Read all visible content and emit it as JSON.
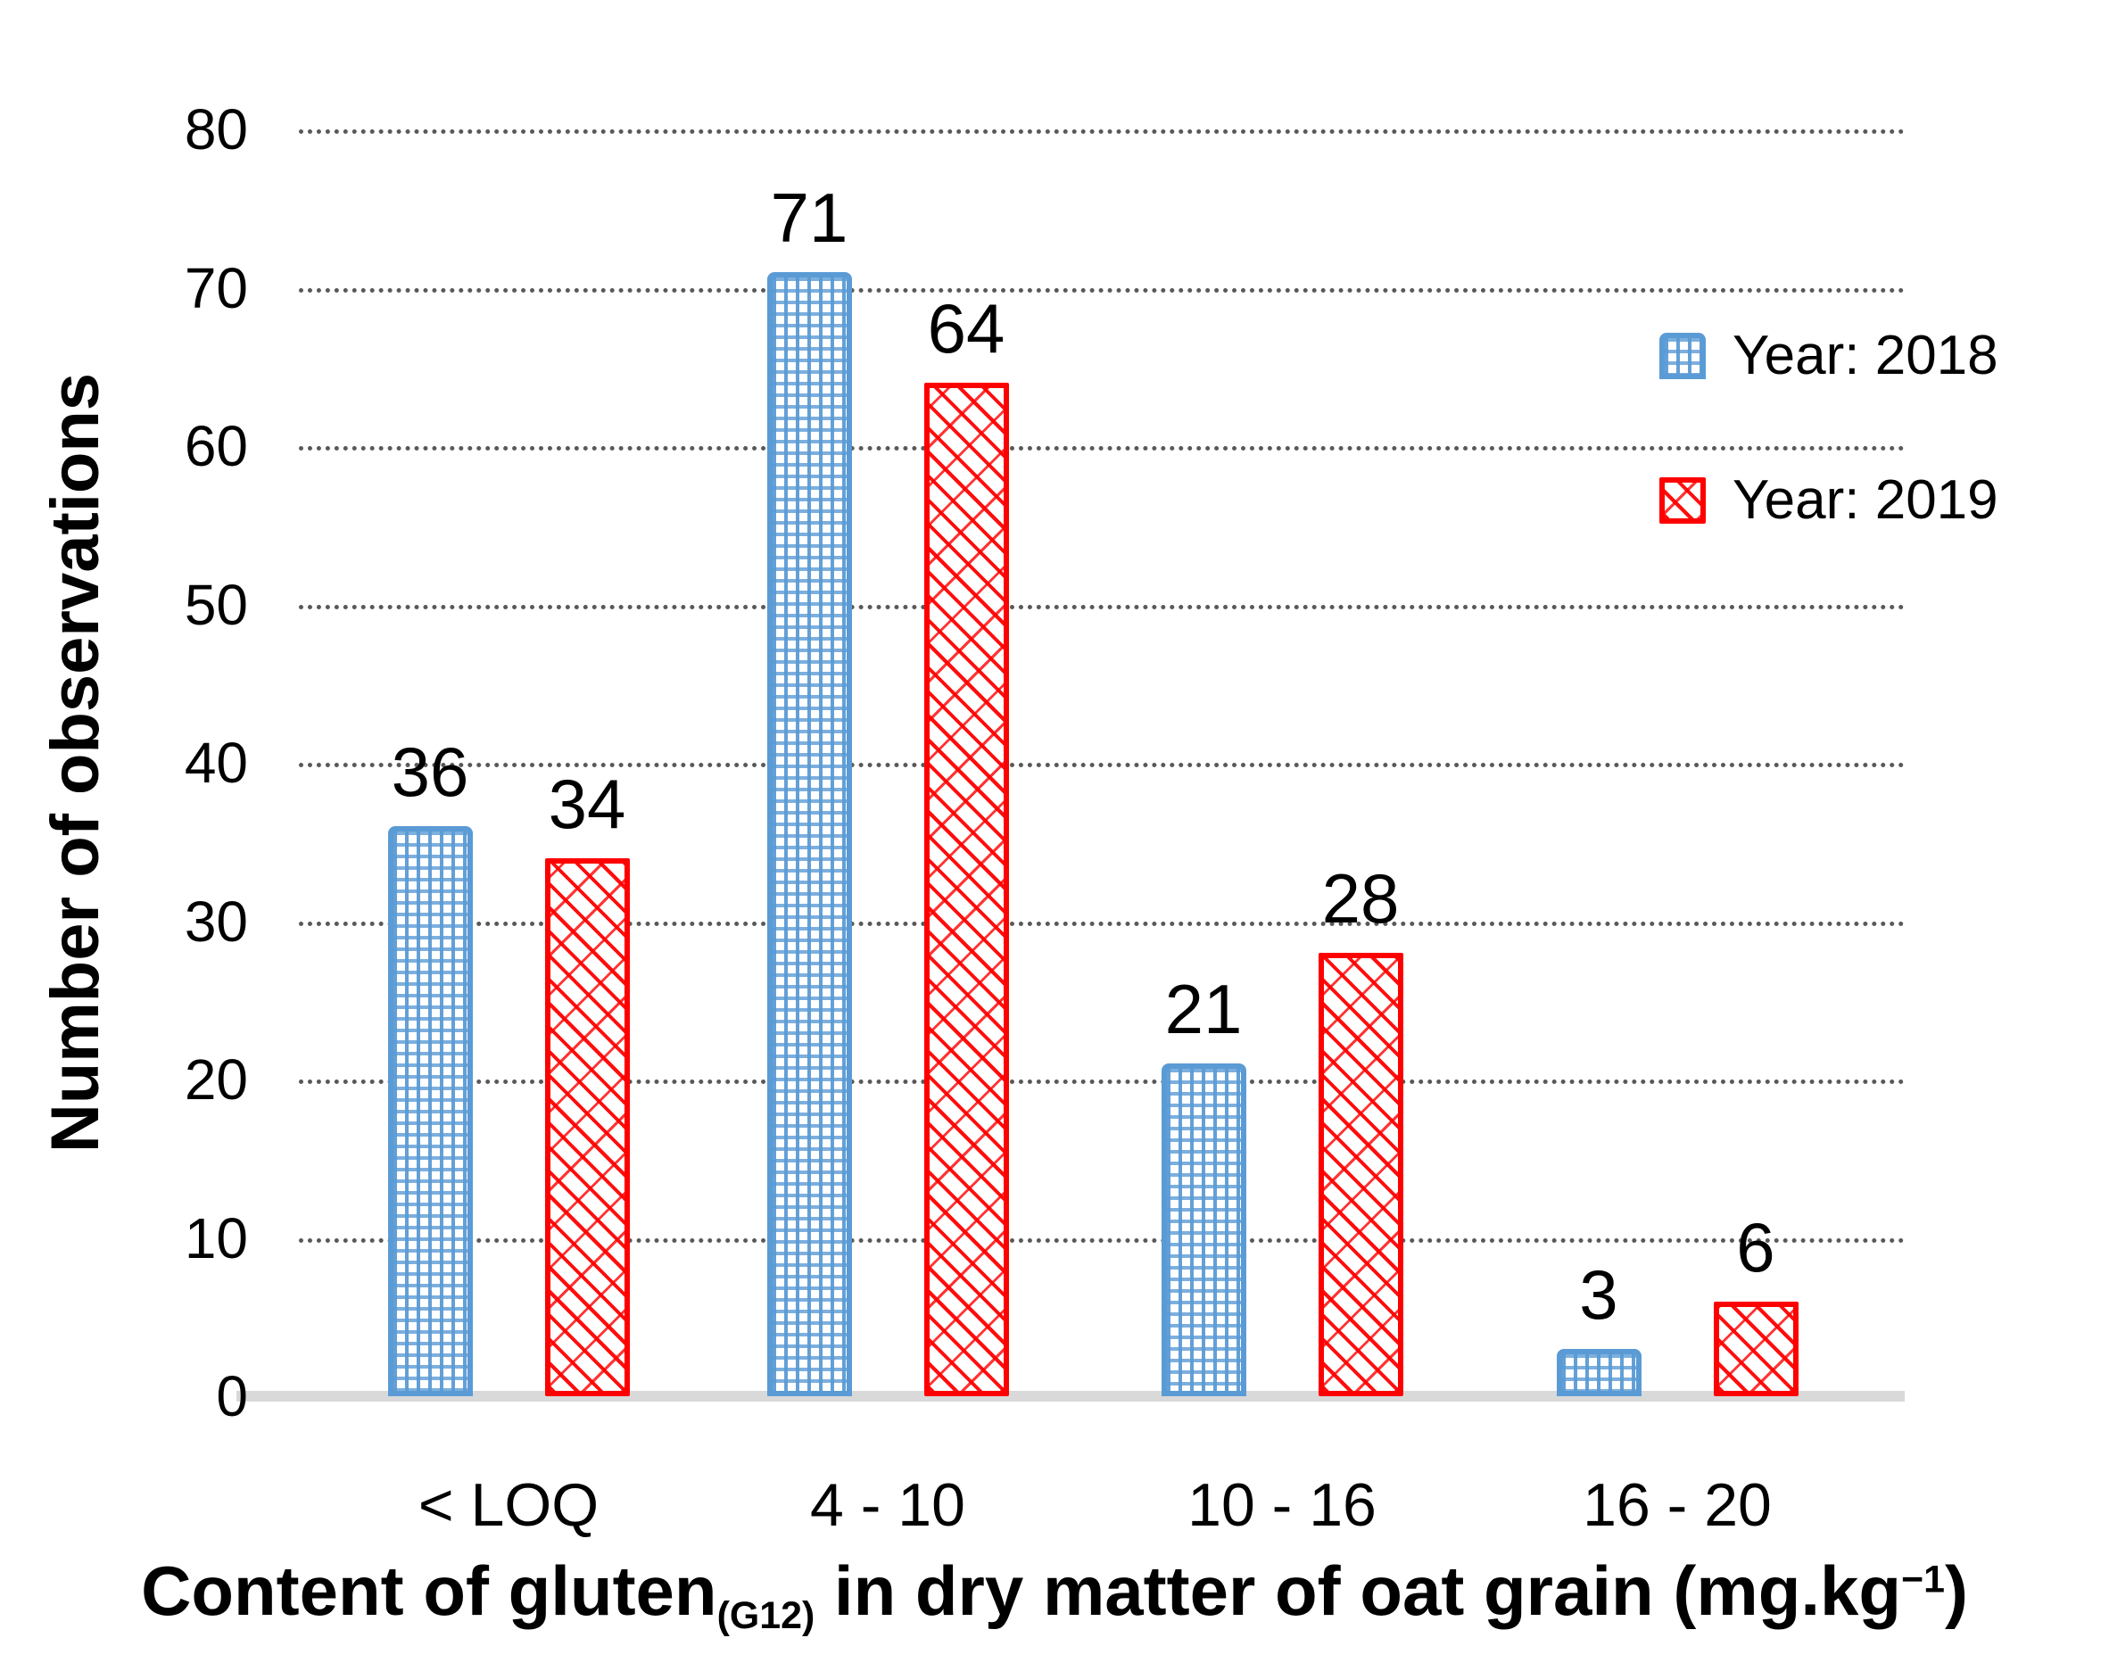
{
  "chart_data": {
    "type": "bar",
    "title": "",
    "categories": [
      "< LOQ",
      "4 - 10",
      "10 - 16",
      "16 - 20"
    ],
    "series": [
      {
        "name": "Year: 2018",
        "values": [
          36,
          71,
          21,
          3
        ],
        "color": "#5B9BD5",
        "pattern": "grid-crosshatch"
      },
      {
        "name": "Year: 2019",
        "values": [
          34,
          64,
          28,
          6
        ],
        "color": "#FF0000",
        "pattern": "diagonal-shingle"
      }
    ],
    "ylabel": "Number of observations",
    "xlabel": {
      "prefix": "Content of gluten",
      "subscript": "(G12)",
      "middle": " in dry matter of oat grain (mg.kg",
      "superscript": "−1",
      "suffix": ")"
    },
    "ylim": [
      0,
      80
    ],
    "yticks": [
      0,
      10,
      20,
      30,
      40,
      50,
      60,
      70,
      80
    ],
    "grid": {
      "horizontal": true,
      "style": "dotted",
      "color": "#595959"
    },
    "baseline_color": "#d9d9d9",
    "legend_position": "upper-right"
  }
}
